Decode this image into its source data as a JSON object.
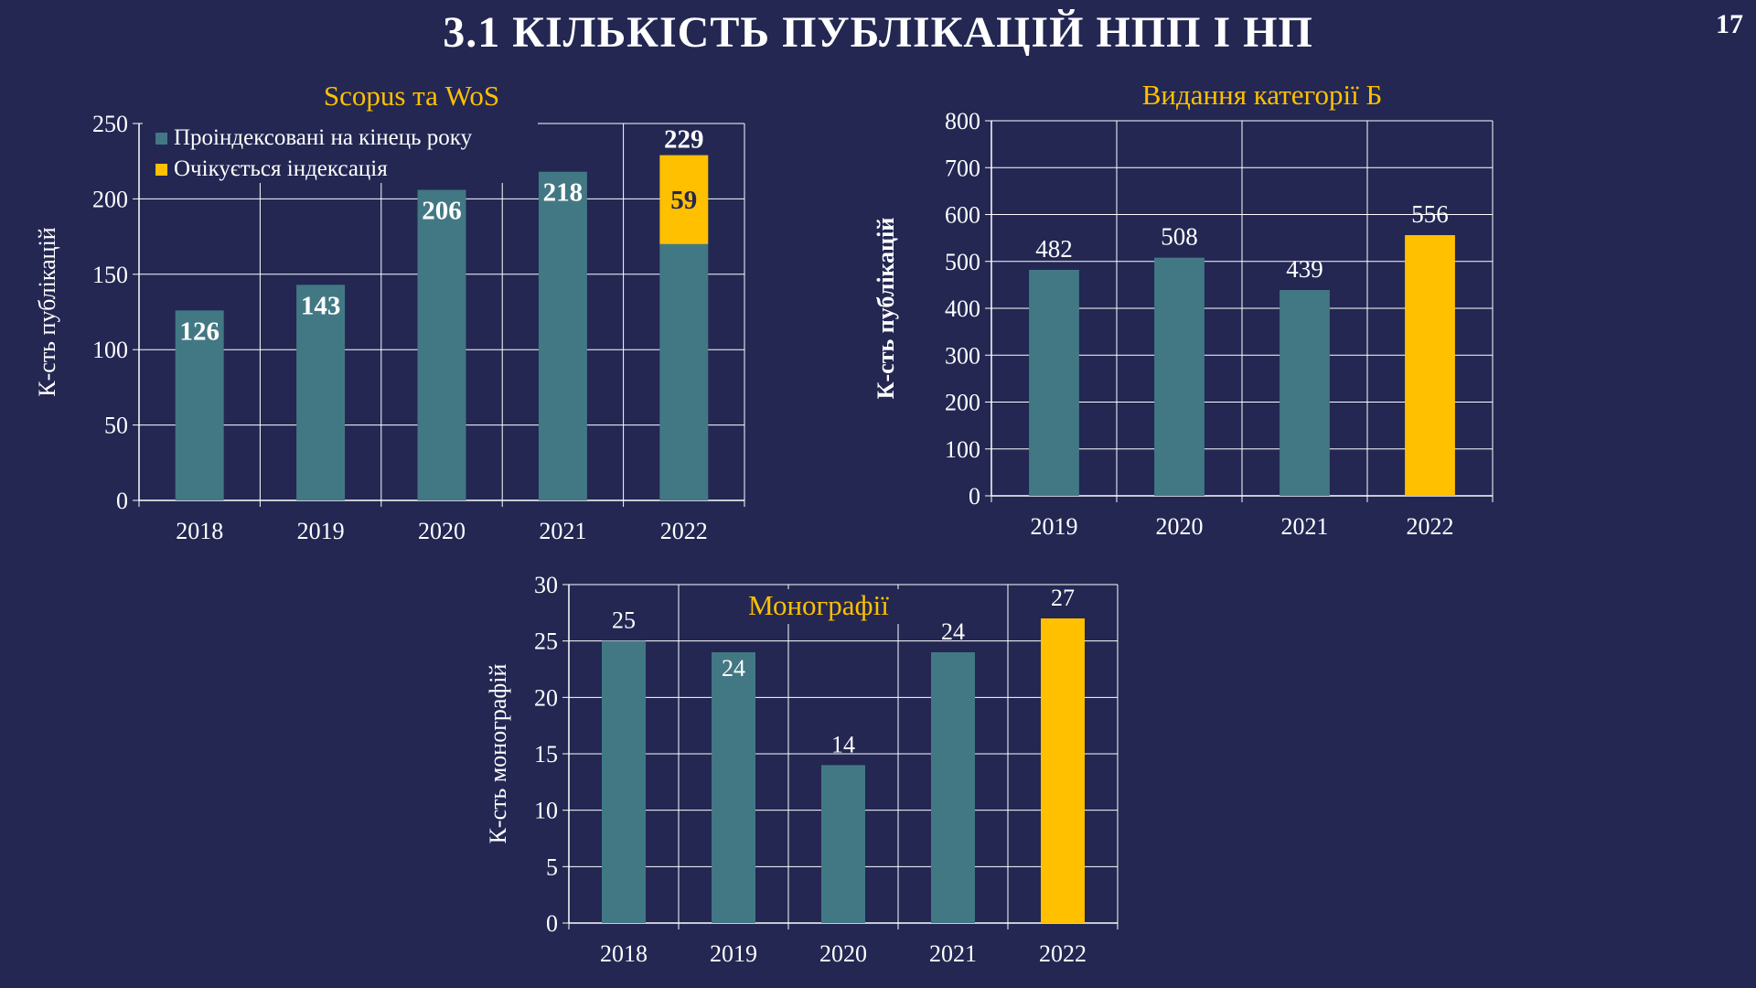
{
  "slide": {
    "title": "3.1 КІЛЬКІСТЬ ПУБЛІКАЦІЙ НПП І НП",
    "page_number": "17"
  },
  "colors": {
    "background": "#232752",
    "teal": "#427884",
    "yellow": "#FFC000",
    "title_gold": "#FFC000",
    "grid": "#ffffff"
  },
  "chart_data": [
    {
      "type": "bar",
      "stacked": true,
      "title": "Scopus та WoS",
      "ylabel": "К-сть публікацій",
      "xlabel": "",
      "ylim": [
        0,
        250
      ],
      "yticks": [
        0,
        50,
        100,
        150,
        200,
        250
      ],
      "categories": [
        "2018",
        "2019",
        "2020",
        "2021",
        "2022"
      ],
      "series": [
        {
          "name": "Проіндексовані на кінець року",
          "color": "#427884",
          "values": [
            126,
            143,
            206,
            218,
            170
          ]
        },
        {
          "name": "Очікується індексація",
          "color": "#FFC000",
          "values": [
            0,
            0,
            0,
            0,
            59
          ]
        }
      ],
      "data_labels": [
        {
          "category": "2018",
          "text": "126"
        },
        {
          "category": "2019",
          "text": "143"
        },
        {
          "category": "2020",
          "text": "206"
        },
        {
          "category": "2021",
          "text": "218"
        },
        {
          "category": "2022",
          "text": "59"
        },
        {
          "category": "2022",
          "text": "229"
        }
      ],
      "legend": "top-left",
      "grid": true
    },
    {
      "type": "bar",
      "title": "Видання категорії Б",
      "ylabel": "К-сть публікацій",
      "xlabel": "",
      "ylim": [
        0,
        800
      ],
      "yticks": [
        0,
        100,
        200,
        300,
        400,
        500,
        600,
        700,
        800
      ],
      "categories": [
        "2019",
        "2020",
        "2021",
        "2022"
      ],
      "values": [
        482,
        508,
        439,
        556
      ],
      "bar_colors": [
        "#427884",
        "#427884",
        "#427884",
        "#FFC000"
      ],
      "grid": true
    },
    {
      "type": "bar",
      "title": "Монографії",
      "ylabel": "К-сть монографій",
      "xlabel": "",
      "ylim": [
        0,
        30
      ],
      "yticks": [
        0,
        5,
        10,
        15,
        20,
        25,
        30
      ],
      "categories": [
        "2018",
        "2019",
        "2020",
        "2021",
        "2022"
      ],
      "values": [
        25,
        24,
        14,
        24,
        27
      ],
      "bar_colors": [
        "#427884",
        "#427884",
        "#427884",
        "#427884",
        "#FFC000"
      ],
      "grid": true
    }
  ]
}
